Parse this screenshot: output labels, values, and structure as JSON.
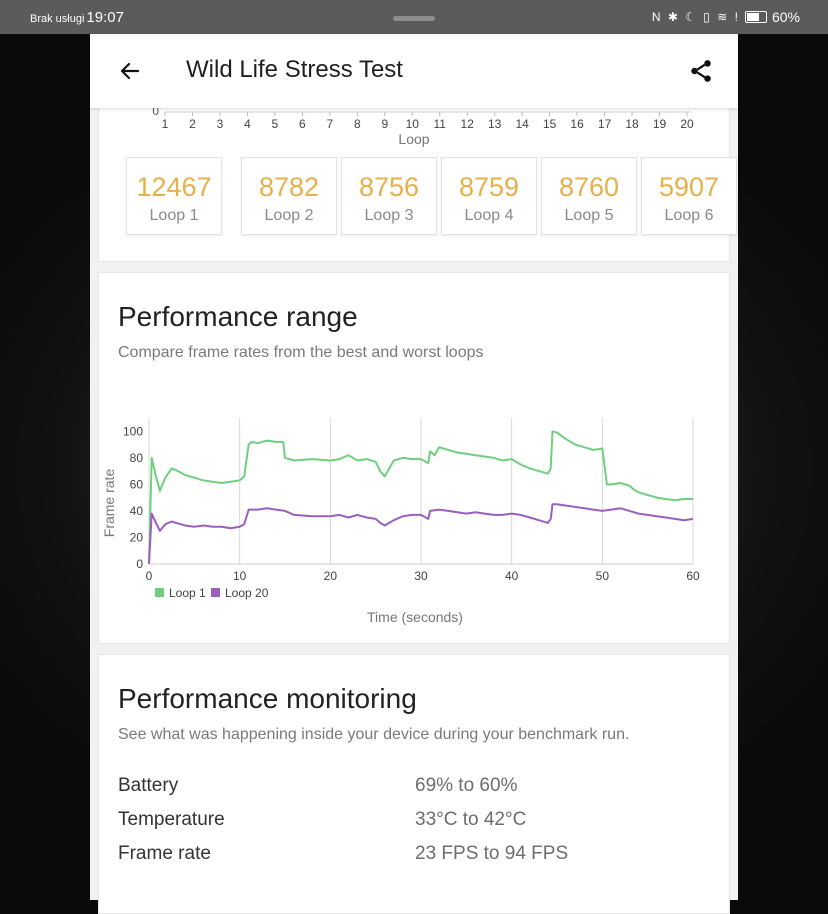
{
  "status_bar": {
    "carrier": "Brak usługi",
    "time": "19:07",
    "icons": "N ✱ ☾ ▯ ≋ !",
    "battery": "60%"
  },
  "app_bar": {
    "title": "Wild Life Stress Test"
  },
  "loop_scores": {
    "xlabel": "Loop",
    "y_tick": "0",
    "x_ticks": [
      "1",
      "2",
      "3",
      "4",
      "5",
      "6",
      "7",
      "8",
      "9",
      "10",
      "11",
      "12",
      "13",
      "14",
      "15",
      "16",
      "17",
      "18",
      "19",
      "20"
    ],
    "tiles": [
      {
        "score": "12467",
        "label": "Loop 1"
      },
      {
        "score": "8782",
        "label": "Loop 2"
      },
      {
        "score": "8756",
        "label": "Loop 3"
      },
      {
        "score": "8759",
        "label": "Loop 4"
      },
      {
        "score": "8760",
        "label": "Loop 5"
      },
      {
        "score": "5907",
        "label": "Loop 6"
      }
    ]
  },
  "performance_range": {
    "title": "Performance range",
    "subtitle": "Compare frame rates from the best and worst loops"
  },
  "chart_data": {
    "type": "line",
    "xlabel": "Time (seconds)",
    "ylabel": "Frame rate",
    "xlim": [
      0,
      60
    ],
    "ylim": [
      0,
      110
    ],
    "x_ticks": [
      "0",
      "10",
      "20",
      "30",
      "40",
      "50",
      "60"
    ],
    "y_ticks": [
      "0",
      "20",
      "40",
      "60",
      "80",
      "100"
    ],
    "grid": "vertical",
    "legend_position": "bottom-left",
    "series": [
      {
        "name": "Loop 1",
        "color": "#6fcf7f",
        "x": [
          0,
          0.3,
          0.7,
          1.2,
          1.8,
          2.5,
          3.2,
          4,
          5,
          6,
          7,
          8,
          9,
          10,
          10.5,
          11,
          11.3,
          12,
          13,
          14,
          14.8,
          15,
          16,
          18,
          20,
          21,
          22,
          23,
          24,
          25,
          25.5,
          26,
          26.5,
          27,
          28,
          29,
          30,
          30.8,
          31,
          31.5,
          32,
          33,
          34,
          35,
          36,
          37,
          38,
          39,
          40,
          41,
          42,
          43,
          44,
          44.3,
          44.5,
          45,
          46,
          47,
          48,
          49,
          50,
          50.5,
          51,
          52,
          53,
          53.5,
          54,
          55,
          56,
          57,
          58,
          59,
          60
        ],
        "values": [
          0,
          80,
          68,
          55,
          65,
          72,
          70,
          67,
          65,
          63,
          62,
          61,
          62,
          63,
          66,
          90,
          92,
          91,
          93,
          92,
          92,
          80,
          78,
          79,
          78,
          79,
          82,
          78,
          79,
          77,
          70,
          66,
          72,
          78,
          80,
          79,
          79,
          76,
          85,
          82,
          88,
          86,
          84,
          83,
          82,
          81,
          80,
          78,
          79,
          75,
          72,
          70,
          68,
          72,
          100,
          99,
          94,
          90,
          88,
          86,
          87,
          60,
          60,
          61,
          59,
          56,
          54,
          52,
          50,
          49,
          48,
          49,
          49
        ]
      },
      {
        "name": "Loop 20",
        "color": "#9b5fc0",
        "x": [
          0,
          0.3,
          0.7,
          1.2,
          1.8,
          2.5,
          3,
          4,
          5,
          6,
          7,
          8,
          9,
          10,
          10.5,
          11,
          12,
          13,
          14,
          15,
          16,
          18,
          20,
          21,
          22,
          23,
          24,
          25,
          25.5,
          26,
          27,
          28,
          29,
          30,
          30.8,
          31,
          32,
          33,
          34,
          35,
          36,
          37,
          38,
          39,
          40,
          41,
          42,
          43,
          44,
          44.3,
          44.5,
          45,
          46,
          47,
          48,
          49,
          50,
          51,
          52,
          53,
          54,
          55,
          56,
          57,
          58,
          59,
          60
        ],
        "values": [
          0,
          38,
          32,
          25,
          30,
          32,
          31,
          29,
          28,
          29,
          28,
          28,
          27,
          28,
          30,
          41,
          41,
          42,
          41,
          40,
          37,
          36,
          36,
          37,
          35,
          37,
          35,
          34,
          31,
          29,
          33,
          36,
          37,
          37,
          34,
          40,
          41,
          40,
          39,
          38,
          39,
          38,
          37,
          37,
          38,
          37,
          35,
          33,
          31,
          34,
          45,
          45,
          44,
          43,
          42,
          41,
          40,
          41,
          42,
          40,
          38,
          37,
          36,
          35,
          34,
          33,
          34
        ]
      }
    ]
  },
  "performance_monitoring": {
    "title": "Performance monitoring",
    "subtitle": "See what was happening inside your device during your benchmark run.",
    "rows": [
      {
        "key": "Battery",
        "value": "69% to 60%"
      },
      {
        "key": "Temperature",
        "value": "33°C to 42°C"
      },
      {
        "key": "Frame rate",
        "value": "23 FPS to 94 FPS"
      }
    ]
  },
  "icons": {
    "back": "back-arrow-icon",
    "share": "share-icon"
  }
}
